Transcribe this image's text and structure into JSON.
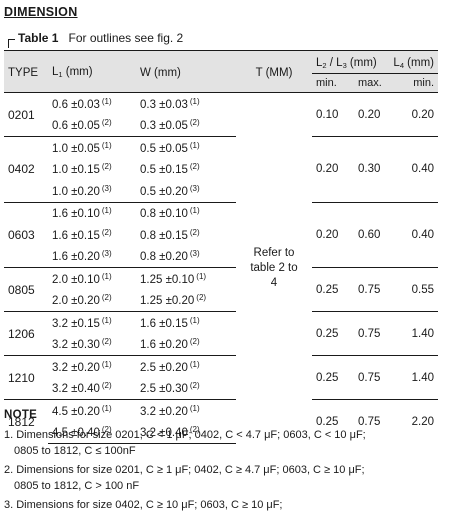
{
  "heading": "DIMENSION",
  "caption": {
    "bold": "Table 1",
    "text": "For outlines see fig. 2"
  },
  "headers": {
    "type": "TYPE",
    "l1": "L",
    "l1_sub": "1",
    "l1_unit": " (mm)",
    "w": "W (mm)",
    "t": "T (MM)",
    "l23": "L",
    "l23_sub2": "2",
    "l23_slash": " / L",
    "l23_sub3": "3",
    "l23_unit": " (mm)",
    "l4": "L",
    "l4_sub": "4",
    "l4_unit": " (mm)",
    "min": "min.",
    "max": "max.",
    "min4": "min."
  },
  "t_text": "Refer to table 2 to 4",
  "groups": [
    {
      "type": "0201",
      "rows": [
        {
          "l1": "0.6 ±0.03",
          "l1n": "(1)",
          "w": "0.3 ±0.03",
          "wn": "(1)"
        },
        {
          "l1": "0.6 ±0.05",
          "l1n": "(2)",
          "w": "0.3 ±0.05",
          "wn": "(2)"
        }
      ],
      "l23min": "0.10",
      "l23max": "0.20",
      "l4min": "0.20"
    },
    {
      "type": "0402",
      "rows": [
        {
          "l1": "1.0 ±0.05",
          "l1n": "(1)",
          "w": "0.5 ±0.05",
          "wn": "(1)"
        },
        {
          "l1": "1.0 ±0.15",
          "l1n": "(2)",
          "w": "0.5 ±0.15",
          "wn": "(2)"
        },
        {
          "l1": "1.0 ±0.20",
          "l1n": "(3)",
          "w": "0.5 ±0.20",
          "wn": "(3)"
        }
      ],
      "l23min": "0.20",
      "l23max": "0.30",
      "l4min": "0.40"
    },
    {
      "type": "0603",
      "rows": [
        {
          "l1": "1.6 ±0.10",
          "l1n": "(1)",
          "w": "0.8 ±0.10",
          "wn": "(1)"
        },
        {
          "l1": "1.6 ±0.15",
          "l1n": "(2)",
          "w": "0.8 ±0.15",
          "wn": "(2)"
        },
        {
          "l1": "1.6 ±0.20",
          "l1n": "(3)",
          "w": "0.8 ±0.20",
          "wn": "(3)"
        }
      ],
      "l23min": "0.20",
      "l23max": "0.60",
      "l4min": "0.40"
    },
    {
      "type": "0805",
      "rows": [
        {
          "l1": "2.0 ±0.10",
          "l1n": "(1)",
          "w": "1.25 ±0.10",
          "wn": "(1)"
        },
        {
          "l1": "2.0 ±0.20",
          "l1n": "(2)",
          "w": "1.25 ±0.20",
          "wn": "(2)"
        }
      ],
      "l23min": "0.25",
      "l23max": "0.75",
      "l4min": "0.55"
    },
    {
      "type": "1206",
      "rows": [
        {
          "l1": "3.2 ±0.15",
          "l1n": "(1)",
          "w": "1.6 ±0.15",
          "wn": "(1)"
        },
        {
          "l1": "3.2 ±0.30",
          "l1n": "(2)",
          "w": "1.6 ±0.20",
          "wn": "(2)"
        }
      ],
      "l23min": "0.25",
      "l23max": "0.75",
      "l4min": "1.40"
    },
    {
      "type": "1210",
      "rows": [
        {
          "l1": "3.2 ±0.20",
          "l1n": "(1)",
          "w": "2.5 ±0.20",
          "wn": "(1)"
        },
        {
          "l1": "3.2 ±0.40",
          "l1n": "(2)",
          "w": "2.5 ±0.30",
          "wn": "(2)"
        }
      ],
      "l23min": "0.25",
      "l23max": "0.75",
      "l4min": "1.40"
    },
    {
      "type": "1812",
      "rows": [
        {
          "l1": "4.5 ±0.20",
          "l1n": "(1)",
          "w": "3.2 ±0.20",
          "wn": "(1)"
        },
        {
          "l1": "4.5 ±0.40",
          "l1n": "(2)",
          "w": "3.2 ±0.40",
          "wn": "(2)"
        }
      ],
      "l23min": "0.25",
      "l23max": "0.75",
      "l4min": "2.20"
    }
  ],
  "note": {
    "title": "NOTE",
    "items": [
      {
        "line1": "1. Dimensions for size 0201, C < 1 μF; 0402, C < 4.7 μF; 0603, C < 10 μF;",
        "line2": "0805 to 1812, C ≤ 100nF"
      },
      {
        "line1": "2. Dimensions for size 0201, C ≥ 1 μF; 0402, C ≥ 4.7 μF; 0603, C ≥ 10 μF;",
        "line2": "0805 to 1812, C > 100 nF"
      },
      {
        "line1": "3. Dimensions for size 0402, C ≥ 10 μF; 0603, C ≥ 10 μF;",
        "line2": ""
      }
    ]
  }
}
